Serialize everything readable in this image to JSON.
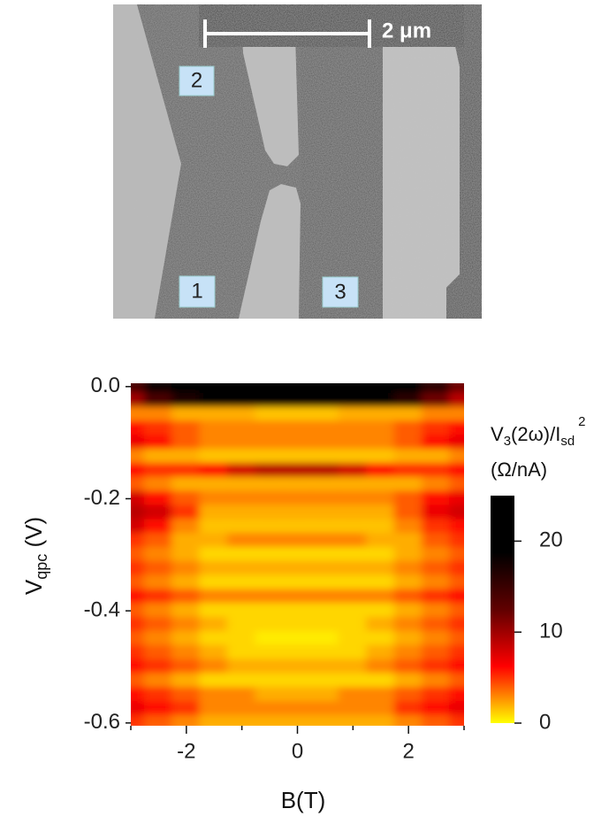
{
  "image": {
    "scale_bar": "2 μm",
    "labels": [
      "2",
      "1",
      "3"
    ]
  },
  "chart_data": {
    "type": "heatmap",
    "y_label": [
      "V",
      "qpc",
      " (V)"
    ],
    "x_label": "B(T)",
    "colorbar_label": [
      "V",
      "3",
      "(2ω)/I",
      "sd",
      "2"
    ],
    "colorbar_unit": "(Ω/nA)",
    "xlim": [
      -3,
      3
    ],
    "ylim": [
      -0.605,
      0.006
    ],
    "xticks": [
      -2,
      0,
      2
    ],
    "xminorticks": [
      -3,
      -1,
      1,
      3
    ],
    "yticks": [
      {
        "value": 0,
        "label": "0.0"
      },
      -0.2,
      -0.4,
      -0.6
    ],
    "clim": [
      0,
      25
    ],
    "cticks": [
      0,
      10,
      20
    ],
    "colormap": [
      "#ffff00",
      "#ff0000",
      "#600000",
      "#000000",
      "#000000"
    ],
    "x": [
      -3,
      -2.5,
      -2,
      -1.5,
      -1,
      -0.5,
      0,
      0.5,
      1,
      1.5,
      2,
      2.5,
      3
    ],
    "y": [
      0,
      -0.025,
      -0.05,
      -0.075,
      -0.1,
      -0.125,
      -0.15,
      -0.175,
      -0.2,
      -0.225,
      -0.25,
      -0.275,
      -0.3,
      -0.325,
      -0.35,
      -0.375,
      -0.4,
      -0.425,
      -0.45,
      -0.475,
      -0.5,
      -0.525,
      -0.55,
      -0.575,
      -0.6
    ],
    "z": [
      [
        14,
        18,
        20,
        22,
        23,
        24,
        24,
        24,
        23,
        22,
        20,
        16,
        12
      ],
      [
        10,
        14,
        17,
        19,
        21,
        22,
        22,
        22,
        21,
        19,
        16,
        12,
        9
      ],
      [
        3,
        3,
        2,
        2,
        2,
        1.5,
        1.5,
        1.5,
        2,
        2,
        2,
        3,
        3
      ],
      [
        6,
        5,
        4,
        3,
        3,
        3,
        3,
        3,
        3,
        3,
        4,
        5,
        6
      ],
      [
        7,
        6,
        4,
        3,
        3,
        3,
        3,
        3,
        3,
        3,
        4,
        6,
        7
      ],
      [
        3,
        2,
        2,
        1.5,
        1.5,
        1.5,
        1.5,
        1.5,
        1.5,
        1.5,
        2,
        2,
        3
      ],
      [
        6,
        5,
        5,
        6,
        8,
        9,
        9,
        9,
        8,
        6,
        5,
        5,
        6
      ],
      [
        4,
        3,
        2,
        2,
        2,
        2,
        2,
        2,
        2,
        2,
        2,
        3,
        4
      ],
      [
        8,
        6,
        4,
        3,
        3,
        3,
        3,
        3,
        3,
        3,
        4,
        6,
        7
      ],
      [
        9,
        8,
        5,
        2,
        2,
        2,
        2,
        2,
        2,
        2,
        4,
        7,
        8
      ],
      [
        8,
        6,
        3,
        1.5,
        1.5,
        1.5,
        1.5,
        1.5,
        1.5,
        1.5,
        3,
        5,
        6
      ],
      [
        5,
        4,
        2,
        2,
        3,
        3,
        3,
        3,
        3,
        2,
        2,
        4,
        5
      ],
      [
        4,
        3,
        2,
        1,
        1,
        1,
        1,
        1,
        1,
        1,
        2,
        3,
        4
      ],
      [
        5,
        4,
        3,
        2,
        2,
        2,
        2,
        2,
        2,
        2,
        3,
        4,
        5
      ],
      [
        4,
        3,
        2,
        1,
        1,
        1,
        1,
        1,
        1,
        1,
        2,
        3,
        4
      ],
      [
        6,
        5,
        4,
        3,
        3,
        3,
        3,
        3,
        3,
        3,
        4,
        5,
        6
      ],
      [
        4,
        3,
        2,
        1,
        1,
        1,
        1,
        1,
        1,
        1,
        2,
        3,
        4
      ],
      [
        5,
        4,
        3,
        2,
        1,
        1,
        1,
        1,
        1,
        2,
        3,
        4,
        5
      ],
      [
        4,
        3,
        2,
        1,
        1,
        0.5,
        0.5,
        0.5,
        1,
        1,
        2,
        3,
        4
      ],
      [
        5,
        4,
        3,
        2,
        1,
        1,
        1,
        1,
        1,
        2,
        3,
        4,
        5
      ],
      [
        6,
        5,
        4,
        3,
        2,
        2,
        2,
        2,
        2,
        3,
        4,
        5,
        6
      ],
      [
        4,
        3,
        2,
        1,
        1,
        1,
        1,
        1,
        1,
        1,
        2,
        3,
        4
      ],
      [
        6,
        5,
        4,
        3,
        3,
        2,
        2,
        2,
        3,
        3,
        4,
        5,
        6
      ],
      [
        7,
        6,
        5,
        3,
        3,
        3,
        3,
        3,
        3,
        3,
        5,
        6,
        7
      ],
      [
        5,
        4,
        3,
        2,
        2,
        2,
        2,
        2,
        2,
        2,
        3,
        4,
        5
      ]
    ]
  }
}
